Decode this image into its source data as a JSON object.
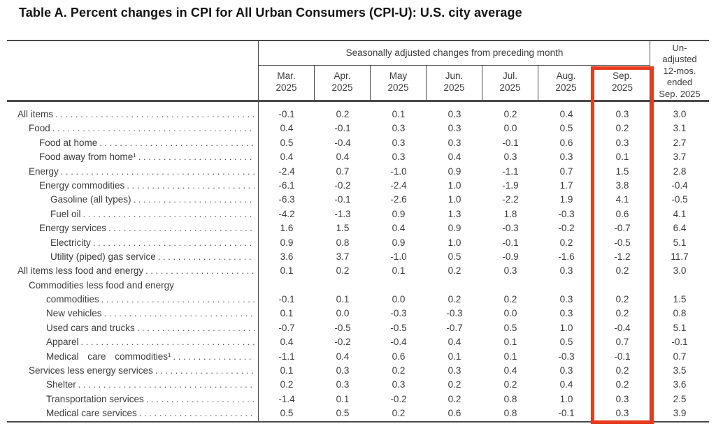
{
  "title": "Table A. Percent changes in CPI for All Urban Consumers (CPI-U): U.S. city average",
  "table": {
    "group_header": "Seasonally adjusted changes from preceding month",
    "unadjusted_header": "Un-\nadjusted\n12-mos.\nended\nSep. 2025",
    "highlighted_column": "Sep. 2025",
    "highlight_color": "#e73b1e",
    "columns": [
      {
        "label": "Mar.\n2025"
      },
      {
        "label": "Apr.\n2025"
      },
      {
        "label": "May\n2025"
      },
      {
        "label": "Jun.\n2025"
      },
      {
        "label": "Jul.\n2025"
      },
      {
        "label": "Aug.\n2025"
      },
      {
        "label": "Sep.\n2025"
      }
    ],
    "rows": [
      {
        "label": "All items",
        "indent": 0,
        "dots": true,
        "values": [
          "-0.1",
          "0.2",
          "0.1",
          "0.3",
          "0.2",
          "0.4",
          "0.3",
          "3.0"
        ]
      },
      {
        "label": "Food",
        "indent": 1,
        "dots": true,
        "values": [
          "0.4",
          "-0.1",
          "0.3",
          "0.3",
          "0.0",
          "0.5",
          "0.2",
          "3.1"
        ]
      },
      {
        "label": "Food at home",
        "indent": 2,
        "dots": true,
        "values": [
          "0.5",
          "-0.4",
          "0.3",
          "0.3",
          "-0.1",
          "0.6",
          "0.3",
          "2.7"
        ]
      },
      {
        "label": "Food away from home¹",
        "indent": 2,
        "dots": true,
        "values": [
          "0.4",
          "0.4",
          "0.3",
          "0.4",
          "0.3",
          "0.3",
          "0.1",
          "3.7"
        ]
      },
      {
        "label": "Energy",
        "indent": 1,
        "dots": true,
        "values": [
          "-2.4",
          "0.7",
          "-1.0",
          "0.9",
          "-1.1",
          "0.7",
          "1.5",
          "2.8"
        ]
      },
      {
        "label": "Energy commodities",
        "indent": 2,
        "dots": true,
        "values": [
          "-6.1",
          "-0.2",
          "-2.4",
          "1.0",
          "-1.9",
          "1.7",
          "3.8",
          "-0.4"
        ]
      },
      {
        "label": "Gasoline (all types)",
        "indent": 4,
        "dots": true,
        "values": [
          "-6.3",
          "-0.1",
          "-2.6",
          "1.0",
          "-2.2",
          "1.9",
          "4.1",
          "-0.5"
        ]
      },
      {
        "label": "Fuel oil",
        "indent": 4,
        "dots": true,
        "values": [
          "-4.2",
          "-1.3",
          "0.9",
          "1.3",
          "1.8",
          "-0.3",
          "0.6",
          "4.1"
        ]
      },
      {
        "label": "Energy services",
        "indent": 2,
        "dots": true,
        "values": [
          "1.6",
          "1.5",
          "0.4",
          "0.9",
          "-0.3",
          "-0.2",
          "-0.7",
          "6.4"
        ]
      },
      {
        "label": "Electricity",
        "indent": 4,
        "dots": true,
        "values": [
          "0.9",
          "0.8",
          "0.9",
          "1.0",
          "-0.1",
          "0.2",
          "-0.5",
          "5.1"
        ]
      },
      {
        "label": "Utility (piped) gas service",
        "indent": 4,
        "dots": true,
        "values": [
          "3.6",
          "3.7",
          "-1.0",
          "0.5",
          "-0.9",
          "-1.6",
          "-1.2",
          "11.7"
        ]
      },
      {
        "label": "All items less food and energy",
        "indent": 0,
        "dots": true,
        "values": [
          "0.1",
          "0.2",
          "0.1",
          "0.2",
          "0.3",
          "0.3",
          "0.2",
          "3.0"
        ]
      },
      {
        "label": "Commodities less food and energy",
        "indent": 1,
        "dots": false,
        "values": [
          "",
          "",
          "",
          "",
          "",
          "",
          "",
          ""
        ]
      },
      {
        "label": "commodities",
        "indent": 3,
        "dots": true,
        "values": [
          "-0.1",
          "0.1",
          "0.0",
          "0.2",
          "0.2",
          "0.3",
          "0.2",
          "1.5"
        ]
      },
      {
        "label": "New vehicles",
        "indent": 3,
        "dots": true,
        "values": [
          "0.1",
          "0.0",
          "-0.3",
          "-0.3",
          "0.0",
          "0.3",
          "0.2",
          "0.8"
        ]
      },
      {
        "label": "Used cars and trucks",
        "indent": 3,
        "dots": true,
        "values": [
          "-0.7",
          "-0.5",
          "-0.5",
          "-0.7",
          "0.5",
          "1.0",
          "-0.4",
          "5.1"
        ]
      },
      {
        "label": "Apparel",
        "indent": 3,
        "dots": true,
        "values": [
          "0.4",
          "-0.2",
          "-0.4",
          "0.4",
          "0.1",
          "0.5",
          "0.7",
          "-0.1"
        ]
      },
      {
        "label": "Medical care commodities¹",
        "indent": 3,
        "dots": true,
        "justify": true,
        "values": [
          "-1.1",
          "0.4",
          "0.6",
          "0.1",
          "0.1",
          "-0.3",
          "-0.1",
          "0.7"
        ]
      },
      {
        "label": "Services less energy services",
        "indent": 1,
        "dots": true,
        "values": [
          "0.1",
          "0.3",
          "0.2",
          "0.3",
          "0.4",
          "0.3",
          "0.2",
          "3.5"
        ]
      },
      {
        "label": "Shelter",
        "indent": 3,
        "dots": true,
        "values": [
          "0.2",
          "0.3",
          "0.3",
          "0.2",
          "0.2",
          "0.4",
          "0.2",
          "3.6"
        ]
      },
      {
        "label": "Transportation services",
        "indent": 3,
        "dots": true,
        "values": [
          "-1.4",
          "0.1",
          "-0.2",
          "0.2",
          "0.8",
          "1.0",
          "0.3",
          "2.5"
        ]
      },
      {
        "label": "Medical care services",
        "indent": 3,
        "dots": true,
        "values": [
          "0.5",
          "0.5",
          "0.2",
          "0.6",
          "0.8",
          "-0.1",
          "0.3",
          "3.9"
        ]
      }
    ]
  }
}
